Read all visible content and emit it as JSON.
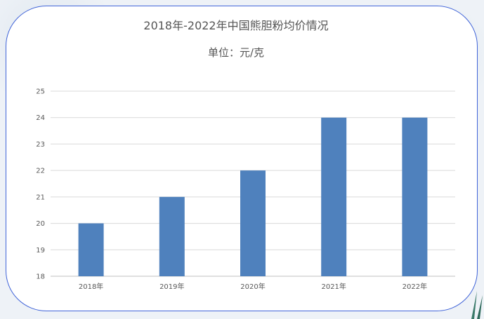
{
  "chart_data": {
    "type": "bar",
    "title": "2018年-2022年中国熊胆粉均价情况",
    "subtitle": "单位：元/克",
    "categories": [
      "2018年",
      "2019年",
      "2020年",
      "2021年",
      "2022年"
    ],
    "values": [
      20,
      21,
      22,
      24,
      24
    ],
    "ylim": [
      18,
      25
    ],
    "yticks": [
      18,
      19,
      20,
      21,
      22,
      23,
      24,
      25
    ],
    "grid": true,
    "legend": "none",
    "bar_color": "#4f81bd"
  },
  "colors": {
    "card_border": "#3f63d8",
    "background": "#eef2f7"
  }
}
